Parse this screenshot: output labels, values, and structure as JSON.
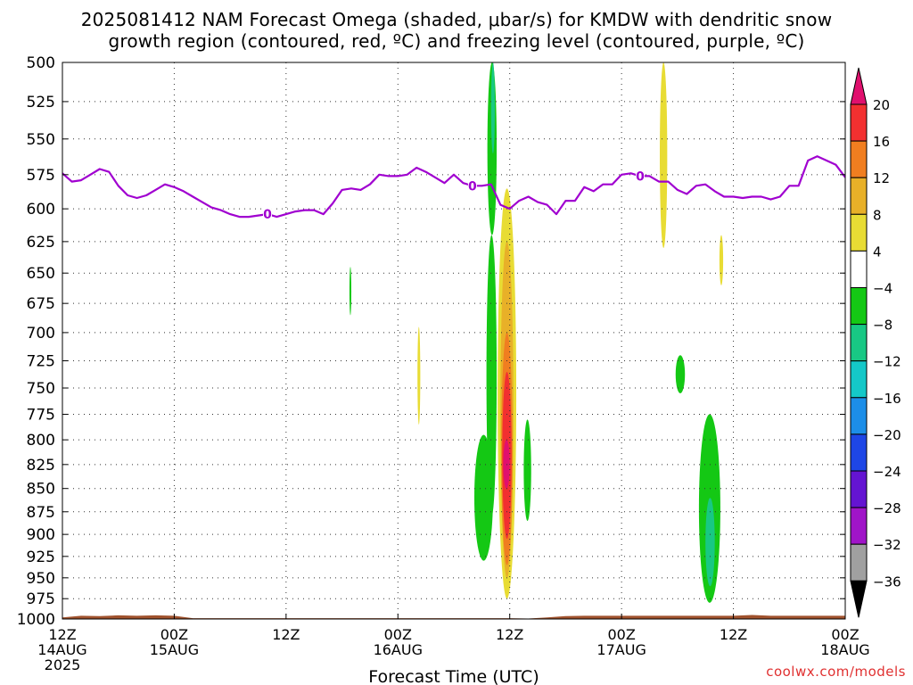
{
  "title": "2025081412 NAM Forecast Omega (shaded, μbar/s) for KMDW with dendritic snow",
  "subtitle": "growth region (contoured, red, ºC) and freezing level (contoured, purple, ºC)",
  "credit": "coolwx.com/models",
  "chart_data": {
    "type": "time-height contour",
    "title": "2025081412 NAM Forecast Omega (shaded, μbar/s) for KMDW with dendritic snow",
    "subtitle": "growth region (contoured, red, ºC) and freezing level (contoured, purple, ºC)",
    "xlabel": "Forecast Time (UTC)",
    "ylabel": "",
    "x_unit": "hours after 2025-08-14 12Z",
    "xlim": [
      0,
      84
    ],
    "ylim": [
      1000,
      500
    ],
    "y_scale": "log-pressure",
    "grid": true,
    "x_ticks": [
      {
        "hour": 0,
        "lines": [
          "12Z",
          "14AUG",
          "2025"
        ]
      },
      {
        "hour": 12,
        "lines": [
          "00Z",
          "15AUG"
        ]
      },
      {
        "hour": 24,
        "lines": [
          "12Z"
        ]
      },
      {
        "hour": 36,
        "lines": [
          "00Z",
          "16AUG"
        ]
      },
      {
        "hour": 48,
        "lines": [
          "12Z"
        ]
      },
      {
        "hour": 60,
        "lines": [
          "00Z",
          "17AUG"
        ]
      },
      {
        "hour": 72,
        "lines": [
          "12Z"
        ]
      },
      {
        "hour": 84,
        "lines": [
          "00Z",
          "18AUG"
        ]
      }
    ],
    "y_ticks": [
      500,
      525,
      550,
      575,
      600,
      625,
      650,
      675,
      700,
      725,
      750,
      775,
      800,
      825,
      850,
      875,
      900,
      925,
      950,
      975,
      1000
    ],
    "colorbar": {
      "position": "right",
      "labels": [
        "20",
        "16",
        "12",
        "8",
        "4",
        "−4",
        "−8",
        "−12",
        "−16",
        "−20",
        "−24",
        "−28",
        "−32",
        "−36"
      ],
      "colors": [
        "#e0106e",
        "#f23030",
        "#f07e20",
        "#e8b028",
        "#e8dc34",
        "#ffffff",
        "#14c814",
        "#18c884",
        "#14c8c8",
        "#1c8ee8",
        "#1e46e6",
        "#6414d2",
        "#a014c8",
        "#a0a0a0",
        "#000000"
      ]
    },
    "freezing_level": {
      "label": "0",
      "color": "#a000d0",
      "points": [
        [
          0,
          574
        ],
        [
          1,
          580
        ],
        [
          2,
          579
        ],
        [
          3,
          575
        ],
        [
          4,
          571
        ],
        [
          5,
          573
        ],
        [
          6,
          583
        ],
        [
          7,
          590
        ],
        [
          8,
          592
        ],
        [
          9,
          590
        ],
        [
          10,
          586
        ],
        [
          11,
          582
        ],
        [
          12,
          584
        ],
        [
          13,
          587
        ],
        [
          14,
          591
        ],
        [
          15,
          595
        ],
        [
          16,
          599
        ],
        [
          17,
          601
        ],
        [
          18,
          604
        ],
        [
          19,
          606
        ],
        [
          20,
          606
        ],
        [
          21,
          605
        ],
        [
          22,
          604
        ],
        [
          23,
          606
        ],
        [
          24,
          604
        ],
        [
          25,
          602
        ],
        [
          26,
          601
        ],
        [
          27,
          601
        ],
        [
          28,
          604
        ],
        [
          29,
          596
        ],
        [
          30,
          586
        ],
        [
          31,
          585
        ],
        [
          32,
          586
        ],
        [
          33,
          582
        ],
        [
          34,
          575
        ],
        [
          35,
          576
        ],
        [
          36,
          576
        ],
        [
          37,
          575
        ],
        [
          38,
          570
        ],
        [
          39,
          573
        ],
        [
          40,
          577
        ],
        [
          41,
          581
        ],
        [
          42,
          575
        ],
        [
          43,
          581
        ],
        [
          44,
          583
        ],
        [
          45,
          583
        ],
        [
          46,
          582
        ],
        [
          47,
          597
        ],
        [
          48,
          600
        ],
        [
          49,
          594
        ],
        [
          50,
          591
        ],
        [
          51,
          595
        ],
        [
          52,
          597
        ],
        [
          53,
          604
        ],
        [
          54,
          594
        ],
        [
          55,
          594
        ],
        [
          56,
          584
        ],
        [
          57,
          587
        ],
        [
          58,
          582
        ],
        [
          59,
          582
        ],
        [
          60,
          575
        ],
        [
          61,
          574
        ],
        [
          62,
          576
        ],
        [
          63,
          576
        ],
        [
          64,
          580
        ],
        [
          65,
          580
        ],
        [
          66,
          586
        ],
        [
          67,
          589
        ],
        [
          68,
          583
        ],
        [
          69,
          582
        ],
        [
          70,
          587
        ],
        [
          71,
          591
        ],
        [
          72,
          591
        ],
        [
          73,
          592
        ],
        [
          74,
          591
        ],
        [
          75,
          591
        ],
        [
          76,
          593
        ],
        [
          77,
          591
        ],
        [
          78,
          583
        ],
        [
          79,
          583
        ],
        [
          80,
          565
        ],
        [
          81,
          562
        ],
        [
          82,
          565
        ],
        [
          83,
          568
        ],
        [
          84,
          577
        ]
      ]
    },
    "omega_regions": [
      {
        "value": "-8 to -4",
        "time": [
          45.6,
          46.6
        ],
        "pressure": [
          500,
          620
        ]
      },
      {
        "value": "-12 to -8",
        "time": [
          46.0,
          46.4
        ],
        "pressure": [
          500,
          560
        ]
      },
      {
        "value": "-8 to -4",
        "time": [
          44.2,
          46.2
        ],
        "pressure": [
          795,
          930
        ]
      },
      {
        "value": "-8 to -4",
        "time": [
          45.5,
          46.6
        ],
        "pressure": [
          620,
          880
        ]
      },
      {
        "value": "-8 to -4",
        "time": [
          49.5,
          50.3
        ],
        "pressure": [
          780,
          885
        ]
      },
      {
        "value": "-8 to -4",
        "time": [
          30.8,
          31.0
        ],
        "pressure": [
          645,
          685
        ]
      },
      {
        "value": "-8 to -4",
        "time": [
          65.8,
          66.8
        ],
        "pressure": [
          720,
          755
        ]
      },
      {
        "value": "-8 to -4",
        "time": [
          68.3,
          70.6
        ],
        "pressure": [
          775,
          980
        ]
      },
      {
        "value": "-12 to -8",
        "time": [
          69.0,
          70.0
        ],
        "pressure": [
          860,
          960
        ]
      },
      {
        "value": "4 to 8",
        "time": [
          46.7,
          48.7
        ],
        "pressure": [
          585,
          975
        ]
      },
      {
        "value": "8 to 12",
        "time": [
          47.0,
          48.4
        ],
        "pressure": [
          625,
          950
        ]
      },
      {
        "value": "12 to 16",
        "time": [
          47.1,
          48.3
        ],
        "pressure": [
          700,
          935
        ]
      },
      {
        "value": "16 to 20",
        "time": [
          47.2,
          48.2
        ],
        "pressure": [
          735,
          905
        ]
      },
      {
        "value": "> 20",
        "time": [
          47.3,
          48.0
        ],
        "pressure": [
          800,
          850
        ]
      },
      {
        "value": "4 to 8",
        "time": [
          38.1,
          38.4
        ],
        "pressure": [
          695,
          785
        ]
      },
      {
        "value": "4 to 8",
        "time": [
          64.1,
          64.9
        ],
        "pressure": [
          500,
          630
        ]
      },
      {
        "value": "4 to 8",
        "time": [
          70.5,
          70.9
        ],
        "pressure": [
          620,
          660
        ]
      }
    ],
    "terrain": {
      "color": "#a0522d",
      "surface_pressure": [
        [
          0,
          998
        ],
        [
          2,
          996
        ],
        [
          4,
          996.5
        ],
        [
          6,
          995.5
        ],
        [
          8,
          996
        ],
        [
          10,
          995.5
        ],
        [
          12,
          996
        ],
        [
          14,
          999
        ],
        [
          48,
          999
        ],
        [
          50,
          999.5
        ],
        [
          52,
          998
        ],
        [
          54,
          996.5
        ],
        [
          56,
          996
        ],
        [
          72,
          996
        ],
        [
          74,
          995
        ],
        [
          76,
          996
        ],
        [
          84,
          996
        ]
      ]
    }
  }
}
